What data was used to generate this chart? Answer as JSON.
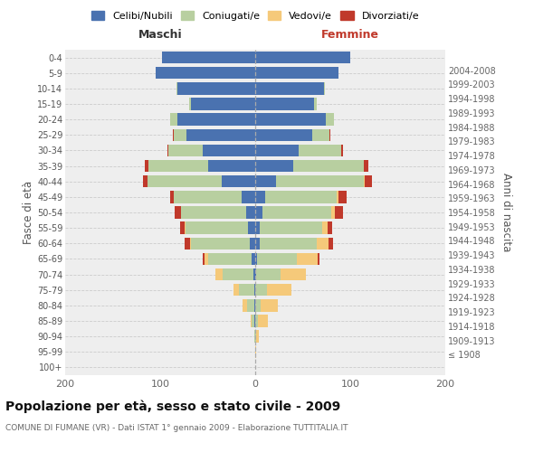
{
  "age_groups": [
    "100+",
    "95-99",
    "90-94",
    "85-89",
    "80-84",
    "75-79",
    "70-74",
    "65-69",
    "60-64",
    "55-59",
    "50-54",
    "45-49",
    "40-44",
    "35-39",
    "30-34",
    "25-29",
    "20-24",
    "15-19",
    "10-14",
    "5-9",
    "0-4"
  ],
  "birth_years": [
    "≤ 1908",
    "1909-1913",
    "1914-1918",
    "1919-1923",
    "1924-1928",
    "1929-1933",
    "1934-1938",
    "1939-1943",
    "1944-1948",
    "1949-1953",
    "1954-1958",
    "1959-1963",
    "1964-1968",
    "1969-1973",
    "1974-1978",
    "1979-1983",
    "1984-1988",
    "1989-1993",
    "1994-1998",
    "1999-2003",
    "2004-2008"
  ],
  "male": {
    "celibi": [
      0,
      0,
      0,
      1,
      1,
      1,
      2,
      4,
      6,
      8,
      10,
      14,
      35,
      50,
      55,
      72,
      82,
      68,
      82,
      105,
      98
    ],
    "coniugati": [
      0,
      0,
      1,
      3,
      8,
      16,
      32,
      46,
      62,
      65,
      68,
      72,
      78,
      62,
      36,
      14,
      8,
      2,
      1,
      0,
      0
    ],
    "vedovi": [
      0,
      0,
      0,
      1,
      4,
      6,
      8,
      3,
      1,
      1,
      0,
      0,
      0,
      0,
      0,
      0,
      0,
      0,
      0,
      0,
      0
    ],
    "divorziati": [
      0,
      0,
      0,
      0,
      0,
      0,
      0,
      2,
      5,
      5,
      7,
      4,
      5,
      4,
      1,
      1,
      0,
      0,
      0,
      0,
      0
    ]
  },
  "female": {
    "nubili": [
      0,
      0,
      0,
      0,
      0,
      0,
      1,
      2,
      5,
      5,
      8,
      10,
      22,
      40,
      46,
      60,
      74,
      62,
      72,
      88,
      100
    ],
    "coniugate": [
      0,
      0,
      1,
      3,
      6,
      12,
      26,
      42,
      60,
      65,
      72,
      76,
      92,
      74,
      44,
      18,
      9,
      3,
      1,
      0,
      0
    ],
    "vedove": [
      0,
      1,
      3,
      10,
      18,
      26,
      26,
      22,
      12,
      6,
      4,
      2,
      1,
      0,
      0,
      0,
      0,
      0,
      0,
      0,
      0
    ],
    "divorziate": [
      0,
      0,
      0,
      0,
      0,
      0,
      0,
      2,
      5,
      5,
      8,
      8,
      8,
      5,
      2,
      1,
      0,
      0,
      0,
      0,
      0
    ]
  },
  "colors": {
    "celibi": "#4a72b0",
    "coniugati": "#b8cfa0",
    "vedovi": "#f5c97a",
    "divorziati": "#c0392b"
  },
  "xlim": 200,
  "title": "Popolazione per età, sesso e stato civile - 2009",
  "subtitle": "COMUNE DI FUMANE (VR) - Dati ISTAT 1° gennaio 2009 - Elaborazione TUTTITALIA.IT",
  "ylabel_left": "Fasce di età",
  "ylabel_right": "Anni di nascita",
  "xlabel_left": "Maschi",
  "xlabel_right": "Femmine",
  "legend_labels": [
    "Celibi/Nubili",
    "Coniugati/e",
    "Vedovi/e",
    "Divorziati/e"
  ]
}
